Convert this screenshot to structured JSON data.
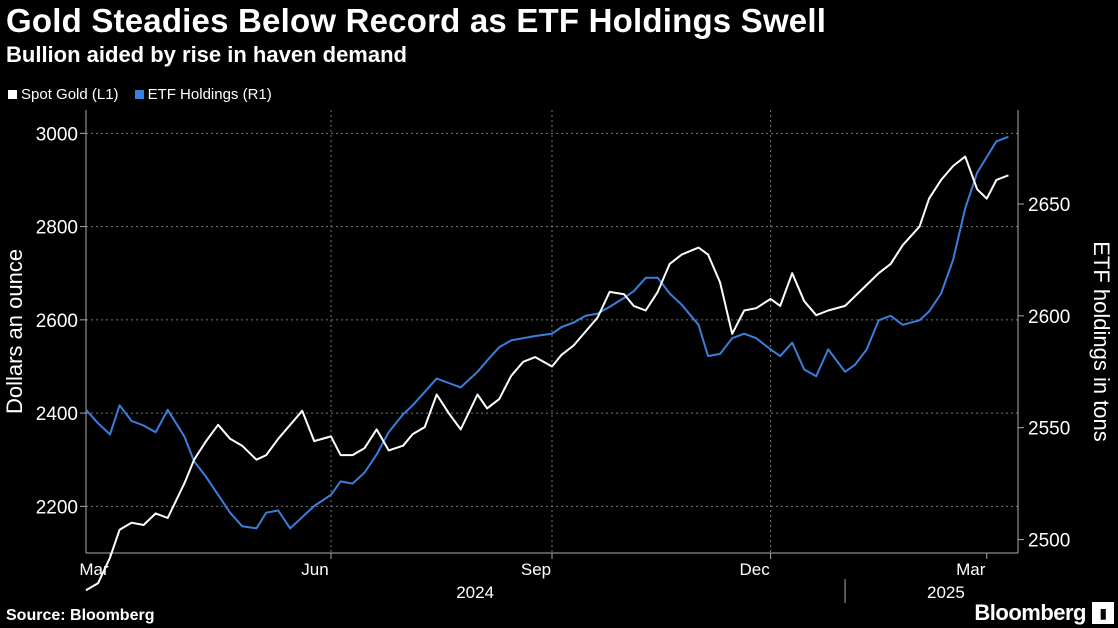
{
  "header": {
    "title": "Gold Steadies Below Record as ETF Holdings Swell",
    "subtitle": "Bullion aided by rise in haven demand"
  },
  "footer": {
    "source": "Source: Bloomberg",
    "brand": "Bloomberg"
  },
  "colors": {
    "gold": "#ffffff",
    "etf": "#3a7fdb",
    "grid": "#777777",
    "axis": "#aaaaaa"
  },
  "chart_data": {
    "type": "line",
    "title": "Gold Steadies Below Record as ETF Holdings Swell",
    "subtitle": "Bullion aided by rise in haven demand",
    "ylabel_left": "Dollars an ounce",
    "ylabel_right": "ETF holdings in tons",
    "ylim_left": [
      2100,
      3050
    ],
    "ylim_right": [
      2494,
      2692
    ],
    "yticks_left": [
      2200,
      2400,
      2600,
      2800,
      3000
    ],
    "yticks_right": [
      2500,
      2550,
      2600,
      2650
    ],
    "xlim": [
      "2024-02-20",
      "2025-03-14"
    ],
    "x_ticks": [
      {
        "label": "Mar",
        "date": "2024-03-01"
      },
      {
        "label": "Jun",
        "date": "2024-06-01"
      },
      {
        "label": "Sep",
        "date": "2024-09-01"
      },
      {
        "label": "Dec",
        "date": "2024-12-01"
      },
      {
        "label": "Mar",
        "date": "2025-03-01"
      }
    ],
    "year_labels": [
      {
        "label": "2024",
        "date": "2024-07-31"
      },
      {
        "label": "2025",
        "date": "2025-02-12"
      }
    ],
    "grid": true,
    "legend_position": "top-left",
    "series": [
      {
        "name": "Spot Gold (L1)",
        "axis": "left",
        "x": [
          "2024-02-20",
          "2024-02-25",
          "2024-03-01",
          "2024-03-05",
          "2024-03-10",
          "2024-03-15",
          "2024-03-20",
          "2024-03-25",
          "2024-04-01",
          "2024-04-05",
          "2024-04-10",
          "2024-04-15",
          "2024-04-20",
          "2024-04-25",
          "2024-05-01",
          "2024-05-05",
          "2024-05-10",
          "2024-05-15",
          "2024-05-20",
          "2024-05-25",
          "2024-06-01",
          "2024-06-05",
          "2024-06-10",
          "2024-06-15",
          "2024-06-20",
          "2024-06-25",
          "2024-07-01",
          "2024-07-05",
          "2024-07-10",
          "2024-07-15",
          "2024-07-20",
          "2024-07-25",
          "2024-08-01",
          "2024-08-05",
          "2024-08-10",
          "2024-08-15",
          "2024-08-20",
          "2024-08-25",
          "2024-09-01",
          "2024-09-05",
          "2024-09-10",
          "2024-09-15",
          "2024-09-20",
          "2024-09-25",
          "2024-10-01",
          "2024-10-05",
          "2024-10-10",
          "2024-10-15",
          "2024-10-20",
          "2024-10-25",
          "2024-11-01",
          "2024-11-05",
          "2024-11-10",
          "2024-11-15",
          "2024-11-20",
          "2024-11-25",
          "2024-12-01",
          "2024-12-05",
          "2024-12-10",
          "2024-12-15",
          "2024-12-20",
          "2024-12-25",
          "2025-01-01",
          "2025-01-05",
          "2025-01-10",
          "2025-01-15",
          "2025-01-20",
          "2025-01-25",
          "2025-02-01",
          "2025-02-05",
          "2025-02-10",
          "2025-02-15",
          "2025-02-20",
          "2025-02-25",
          "2025-03-01",
          "2025-03-05",
          "2025-03-10"
        ],
        "values": [
          2020,
          2035,
          2090,
          2150,
          2165,
          2160,
          2185,
          2175,
          2250,
          2300,
          2340,
          2375,
          2345,
          2330,
          2300,
          2310,
          2345,
          2375,
          2405,
          2340,
          2350,
          2310,
          2310,
          2325,
          2365,
          2320,
          2330,
          2355,
          2370,
          2440,
          2400,
          2365,
          2440,
          2410,
          2430,
          2480,
          2510,
          2520,
          2500,
          2525,
          2545,
          2575,
          2605,
          2660,
          2655,
          2630,
          2620,
          2660,
          2720,
          2740,
          2755,
          2740,
          2680,
          2570,
          2620,
          2625,
          2645,
          2630,
          2700,
          2640,
          2610,
          2620,
          2630,
          2650,
          2675,
          2700,
          2720,
          2760,
          2800,
          2860,
          2900,
          2930,
          2950,
          2880,
          2860,
          2900,
          2910
        ]
      },
      {
        "name": "ETF Holdings (R1)",
        "axis": "right",
        "x": [
          "2024-02-20",
          "2024-02-25",
          "2024-03-01",
          "2024-03-05",
          "2024-03-10",
          "2024-03-15",
          "2024-03-20",
          "2024-03-25",
          "2024-04-01",
          "2024-04-05",
          "2024-04-10",
          "2024-04-15",
          "2024-04-20",
          "2024-04-25",
          "2024-05-01",
          "2024-05-05",
          "2024-05-10",
          "2024-05-15",
          "2024-05-20",
          "2024-05-25",
          "2024-06-01",
          "2024-06-05",
          "2024-06-10",
          "2024-06-15",
          "2024-06-20",
          "2024-06-25",
          "2024-07-01",
          "2024-07-05",
          "2024-07-10",
          "2024-07-15",
          "2024-07-20",
          "2024-07-25",
          "2024-08-01",
          "2024-08-05",
          "2024-08-10",
          "2024-08-15",
          "2024-08-20",
          "2024-08-25",
          "2024-09-01",
          "2024-09-05",
          "2024-09-10",
          "2024-09-15",
          "2024-09-20",
          "2024-09-25",
          "2024-10-01",
          "2024-10-05",
          "2024-10-10",
          "2024-10-15",
          "2024-10-20",
          "2024-10-25",
          "2024-11-01",
          "2024-11-05",
          "2024-11-10",
          "2024-11-15",
          "2024-11-20",
          "2024-11-25",
          "2024-12-01",
          "2024-12-05",
          "2024-12-10",
          "2024-12-15",
          "2024-12-20",
          "2024-12-25",
          "2025-01-01",
          "2025-01-05",
          "2025-01-10",
          "2025-01-15",
          "2025-01-20",
          "2025-01-25",
          "2025-02-01",
          "2025-02-05",
          "2025-02-10",
          "2025-02-15",
          "2025-02-20",
          "2025-02-25",
          "2025-03-01",
          "2025-03-05",
          "2025-03-10"
        ],
        "values": [
          2558,
          2552,
          2547,
          2560,
          2553,
          2551,
          2548,
          2558,
          2546,
          2535,
          2528,
          2520,
          2512,
          2506,
          2505,
          2512,
          2513,
          2505,
          2510,
          2515,
          2520,
          2526,
          2525,
          2530,
          2538,
          2548,
          2556,
          2560,
          2566,
          2572,
          2570,
          2568,
          2575,
          2580,
          2586,
          2589,
          2590,
          2591,
          2592,
          2595,
          2597,
          2600,
          2601,
          2604,
          2608,
          2611,
          2617,
          2617,
          2610,
          2605,
          2596,
          2582,
          2583,
          2590,
          2592,
          2590,
          2585,
          2582,
          2588,
          2576,
          2573,
          2585,
          2575,
          2578,
          2585,
          2598,
          2600,
          2596,
          2598,
          2602,
          2610,
          2625,
          2648,
          2664,
          2671,
          2678,
          2680
        ]
      }
    ]
  }
}
